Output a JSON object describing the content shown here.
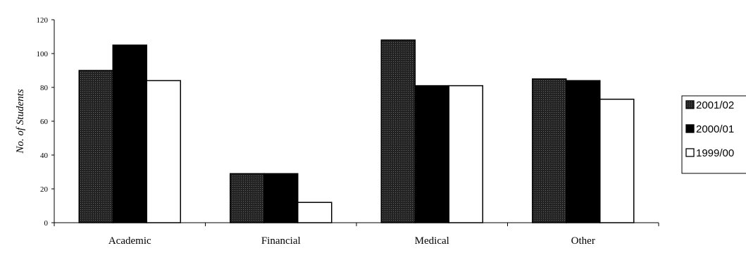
{
  "chart_data": {
    "type": "bar",
    "title": "",
    "xlabel": "",
    "ylabel": "No. of Students",
    "ylim": [
      0,
      120
    ],
    "yticks": [
      0,
      20,
      40,
      60,
      80,
      100,
      120
    ],
    "categories": [
      "Academic",
      "Financial",
      "Medical",
      "Other"
    ],
    "series": [
      {
        "name": "2001/02",
        "values": [
          90,
          29,
          108,
          85
        ],
        "color": "#1a1a1a"
      },
      {
        "name": "2000/01",
        "values": [
          105,
          29,
          81,
          84
        ],
        "color": "#000000"
      },
      {
        "name": "1999/00",
        "values": [
          84,
          12,
          81,
          73
        ],
        "color": "#ffffff"
      }
    ],
    "grid": false,
    "legend_position": "right"
  }
}
